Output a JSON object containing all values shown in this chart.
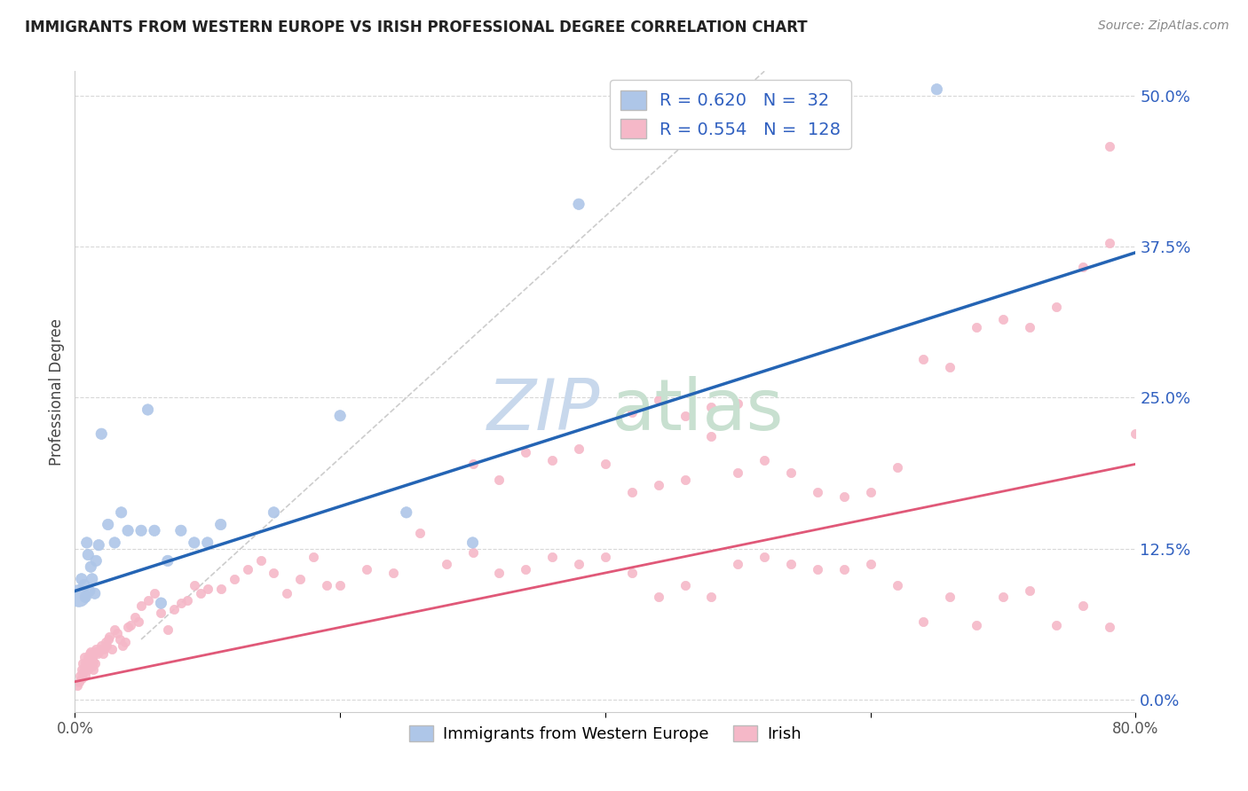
{
  "title": "IMMIGRANTS FROM WESTERN EUROPE VS IRISH PROFESSIONAL DEGREE CORRELATION CHART",
  "source": "Source: ZipAtlas.com",
  "ylabel": "Professional Degree",
  "y_ticks": [
    0.0,
    0.125,
    0.25,
    0.375,
    0.5
  ],
  "y_tick_labels": [
    "0.0%",
    "12.5%",
    "25.0%",
    "37.5%",
    "50.0%"
  ],
  "xlim": [
    0.0,
    0.8
  ],
  "ylim": [
    -0.01,
    0.52
  ],
  "series1_name": "Immigrants from Western Europe",
  "series2_name": "Irish",
  "series1_R": "0.620",
  "series1_N": "32",
  "series2_R": "0.554",
  "series2_N": "128",
  "series1_color": "#aec6e8",
  "series2_color": "#f5b8c8",
  "series1_edge_color": "#aec6e8",
  "series2_edge_color": "#f5b8c8",
  "series1_line_color": "#2464b4",
  "series2_line_color": "#e05878",
  "diag_line_color": "#c0c0c0",
  "background_color": "#ffffff",
  "grid_color": "#d8d8d8",
  "ytick_color": "#3060c0",
  "title_color": "#222222",
  "source_color": "#888888",
  "s1_x": [
    0.003,
    0.005,
    0.007,
    0.008,
    0.009,
    0.01,
    0.011,
    0.012,
    0.013,
    0.015,
    0.016,
    0.018,
    0.02,
    0.025,
    0.03,
    0.035,
    0.04,
    0.05,
    0.055,
    0.06,
    0.065,
    0.07,
    0.08,
    0.09,
    0.1,
    0.11,
    0.15,
    0.2,
    0.25,
    0.3,
    0.38,
    0.65
  ],
  "s1_y": [
    0.086,
    0.1,
    0.095,
    0.085,
    0.13,
    0.12,
    0.09,
    0.11,
    0.1,
    0.088,
    0.115,
    0.128,
    0.22,
    0.145,
    0.13,
    0.155,
    0.14,
    0.14,
    0.24,
    0.14,
    0.08,
    0.115,
    0.14,
    0.13,
    0.13,
    0.145,
    0.155,
    0.235,
    0.155,
    0.13,
    0.41,
    0.505
  ],
  "s1_sizes": [
    320,
    80,
    80,
    80,
    80,
    80,
    80,
    80,
    80,
    80,
    80,
    80,
    80,
    80,
    80,
    80,
    80,
    80,
    80,
    80,
    80,
    80,
    80,
    80,
    80,
    80,
    80,
    80,
    80,
    80,
    80,
    80
  ],
  "s2_x": [
    0.002,
    0.003,
    0.004,
    0.005,
    0.005,
    0.006,
    0.006,
    0.007,
    0.007,
    0.008,
    0.008,
    0.009,
    0.009,
    0.01,
    0.01,
    0.011,
    0.011,
    0.012,
    0.012,
    0.013,
    0.013,
    0.014,
    0.014,
    0.015,
    0.015,
    0.016,
    0.017,
    0.018,
    0.019,
    0.02,
    0.021,
    0.022,
    0.023,
    0.024,
    0.025,
    0.026,
    0.028,
    0.03,
    0.032,
    0.034,
    0.036,
    0.038,
    0.04,
    0.042,
    0.045,
    0.048,
    0.05,
    0.055,
    0.06,
    0.065,
    0.07,
    0.075,
    0.08,
    0.085,
    0.09,
    0.095,
    0.1,
    0.11,
    0.12,
    0.13,
    0.14,
    0.15,
    0.16,
    0.17,
    0.18,
    0.19,
    0.2,
    0.22,
    0.24,
    0.26,
    0.28,
    0.3,
    0.32,
    0.34,
    0.36,
    0.38,
    0.4,
    0.42,
    0.44,
    0.46,
    0.48,
    0.5,
    0.52,
    0.54,
    0.56,
    0.58,
    0.6,
    0.62,
    0.64,
    0.66,
    0.68,
    0.7,
    0.72,
    0.74,
    0.76,
    0.78,
    0.3,
    0.32,
    0.34,
    0.36,
    0.38,
    0.4,
    0.42,
    0.44,
    0.46,
    0.48,
    0.5,
    0.52,
    0.54,
    0.56,
    0.58,
    0.6,
    0.62,
    0.64,
    0.66,
    0.68,
    0.7,
    0.72,
    0.74,
    0.76,
    0.78,
    0.8,
    0.42,
    0.44,
    0.46,
    0.48,
    0.5,
    0.78
  ],
  "s2_y": [
    0.012,
    0.015,
    0.02,
    0.025,
    0.018,
    0.03,
    0.022,
    0.035,
    0.025,
    0.03,
    0.02,
    0.032,
    0.028,
    0.035,
    0.025,
    0.038,
    0.032,
    0.04,
    0.033,
    0.035,
    0.028,
    0.032,
    0.025,
    0.04,
    0.03,
    0.042,
    0.038,
    0.04,
    0.042,
    0.045,
    0.038,
    0.042,
    0.048,
    0.045,
    0.05,
    0.052,
    0.042,
    0.058,
    0.055,
    0.05,
    0.045,
    0.048,
    0.06,
    0.062,
    0.068,
    0.065,
    0.078,
    0.082,
    0.088,
    0.072,
    0.058,
    0.075,
    0.08,
    0.082,
    0.095,
    0.088,
    0.092,
    0.092,
    0.1,
    0.108,
    0.115,
    0.105,
    0.088,
    0.1,
    0.118,
    0.095,
    0.095,
    0.108,
    0.105,
    0.138,
    0.112,
    0.122,
    0.105,
    0.108,
    0.118,
    0.112,
    0.118,
    0.105,
    0.085,
    0.095,
    0.085,
    0.112,
    0.118,
    0.112,
    0.108,
    0.108,
    0.112,
    0.095,
    0.065,
    0.085,
    0.062,
    0.085,
    0.09,
    0.062,
    0.078,
    0.06,
    0.195,
    0.182,
    0.205,
    0.198,
    0.208,
    0.195,
    0.172,
    0.178,
    0.182,
    0.218,
    0.188,
    0.198,
    0.188,
    0.172,
    0.168,
    0.172,
    0.192,
    0.282,
    0.275,
    0.308,
    0.315,
    0.308,
    0.325,
    0.358,
    0.378,
    0.22,
    0.238,
    0.248,
    0.235,
    0.242,
    0.245,
    0.458
  ],
  "blue_line": {
    "x0": 0.0,
    "y0": 0.09,
    "x1": 0.8,
    "y1": 0.37
  },
  "pink_line": {
    "x0": 0.0,
    "y0": 0.015,
    "x1": 0.8,
    "y1": 0.195
  },
  "diag_line": {
    "x0": 0.05,
    "y0": 0.05,
    "x1": 0.52,
    "y1": 0.52
  }
}
